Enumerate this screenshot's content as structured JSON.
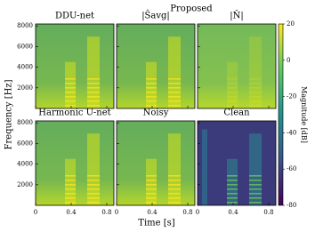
{
  "chart_data": {
    "type": "spectrogram",
    "group_title": "Proposed",
    "panels": [
      {
        "title": "DDU-net",
        "row": 0,
        "col": 0
      },
      {
        "title": "|Ŝavg|",
        "row": 0,
        "col": 1
      },
      {
        "title": "|N̂|",
        "row": 0,
        "col": 2
      },
      {
        "title": "Harmonic U-net",
        "row": 1,
        "col": 0
      },
      {
        "title": "Noisy",
        "row": 1,
        "col": 1
      },
      {
        "title": "Clean",
        "row": 1,
        "col": 2
      }
    ],
    "x_label": "Time [s]",
    "y_label": "Frequency [Hz]",
    "xlim": [
      0,
      0.88
    ],
    "xticks": [
      0,
      0.4,
      0.8
    ],
    "ylim": [
      0,
      8192
    ],
    "yticks": [
      2000,
      4000,
      6000,
      8000
    ],
    "colorbar": {
      "label": "Magnitude [dB]",
      "lim": [
        -80,
        20
      ],
      "ticks": [
        20,
        0,
        -20,
        -40,
        -60,
        -80
      ],
      "colormap": "viridis"
    }
  }
}
